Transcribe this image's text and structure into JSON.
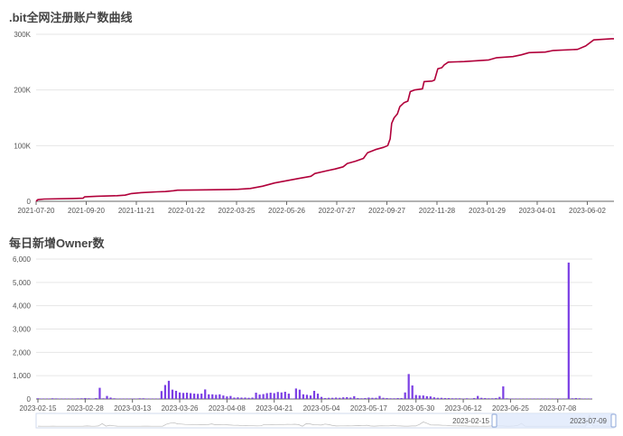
{
  "chart_data": [
    {
      "type": "line",
      "title": ".bit全网注册账户数曲线",
      "color": "#b1003a",
      "ylim": [
        0,
        300000
      ],
      "y_ticks": [
        {
          "value": 0,
          "label": "0"
        },
        {
          "value": 100000,
          "label": "100K"
        },
        {
          "value": 200000,
          "label": "200K"
        },
        {
          "value": 300000,
          "label": "300K"
        }
      ],
      "x_range": [
        0,
        715
      ],
      "x_ticks": [
        {
          "day": 0,
          "label": "2021-07-20"
        },
        {
          "day": 62,
          "label": "2021-09-20"
        },
        {
          "day": 124,
          "label": "2021-11-21"
        },
        {
          "day": 186,
          "label": "2022-01-22"
        },
        {
          "day": 248,
          "label": "2022-03-25"
        },
        {
          "day": 310,
          "label": "2022-05-26"
        },
        {
          "day": 372,
          "label": "2022-07-27"
        },
        {
          "day": 434,
          "label": "2022-09-27"
        },
        {
          "day": 496,
          "label": "2022-11-28"
        },
        {
          "day": 558,
          "label": "2023-01-29"
        },
        {
          "day": 620,
          "label": "2023-04-01"
        },
        {
          "day": 682,
          "label": "2023-06-02"
        }
      ],
      "points": [
        [
          0,
          0
        ],
        [
          2,
          3000
        ],
        [
          10,
          4000
        ],
        [
          45,
          5000
        ],
        [
          58,
          5500
        ],
        [
          60,
          8000
        ],
        [
          75,
          9000
        ],
        [
          100,
          10000
        ],
        [
          110,
          11000
        ],
        [
          118,
          14000
        ],
        [
          130,
          15500
        ],
        [
          150,
          17000
        ],
        [
          160,
          17500
        ],
        [
          170,
          19000
        ],
        [
          175,
          20000
        ],
        [
          200,
          20500
        ],
        [
          230,
          21000
        ],
        [
          250,
          21500
        ],
        [
          265,
          23000
        ],
        [
          280,
          27000
        ],
        [
          295,
          33000
        ],
        [
          310,
          37000
        ],
        [
          325,
          41000
        ],
        [
          340,
          45000
        ],
        [
          345,
          50000
        ],
        [
          360,
          55000
        ],
        [
          370,
          58000
        ],
        [
          380,
          62000
        ],
        [
          385,
          68000
        ],
        [
          395,
          72000
        ],
        [
          405,
          77000
        ],
        [
          410,
          87000
        ],
        [
          420,
          93000
        ],
        [
          430,
          97000
        ],
        [
          435,
          100000
        ],
        [
          438,
          112000
        ],
        [
          440,
          140000
        ],
        [
          443,
          150000
        ],
        [
          447,
          157000
        ],
        [
          450,
          170000
        ],
        [
          455,
          177000
        ],
        [
          460,
          180000
        ],
        [
          463,
          197000
        ],
        [
          468,
          200000
        ],
        [
          478,
          202000
        ],
        [
          480,
          215000
        ],
        [
          490,
          216000
        ],
        [
          493,
          218000
        ],
        [
          497,
          238000
        ],
        [
          502,
          240000
        ],
        [
          505,
          245000
        ],
        [
          510,
          250000
        ],
        [
          530,
          251000
        ],
        [
          560,
          254000
        ],
        [
          570,
          258000
        ],
        [
          590,
          260000
        ],
        [
          600,
          263000
        ],
        [
          610,
          267000
        ],
        [
          630,
          268000
        ],
        [
          640,
          271000
        ],
        [
          670,
          273000
        ],
        [
          680,
          279000
        ],
        [
          690,
          290000
        ],
        [
          712,
          292000
        ],
        [
          715,
          292000
        ]
      ]
    },
    {
      "type": "bar",
      "title": "每日新增Owner数",
      "color": "#7b3fe4",
      "ylim": [
        0,
        6000
      ],
      "y_ticks": [
        {
          "value": 0,
          "label": "0"
        },
        {
          "value": 1000,
          "label": "1,000"
        },
        {
          "value": 2000,
          "label": "2,000"
        },
        {
          "value": 3000,
          "label": "3,000"
        },
        {
          "value": 4000,
          "label": "4,000"
        },
        {
          "value": 5000,
          "label": "5,000"
        },
        {
          "value": 6000,
          "label": "6,000"
        }
      ],
      "start_date": "2023-02-15",
      "x_ticks": [
        {
          "day": 0,
          "label": "2023-02-15"
        },
        {
          "day": 13,
          "label": "2023-02-28"
        },
        {
          "day": 26,
          "label": "2023-03-13"
        },
        {
          "day": 39,
          "label": "2023-03-26"
        },
        {
          "day": 52,
          "label": "2023-04-08"
        },
        {
          "day": 65,
          "label": "2023-04-21"
        },
        {
          "day": 78,
          "label": "2023-05-04"
        },
        {
          "day": 91,
          "label": "2023-05-17"
        },
        {
          "day": 104,
          "label": "2023-05-30"
        },
        {
          "day": 117,
          "label": "2023-06-12"
        },
        {
          "day": 130,
          "label": "2023-06-25"
        },
        {
          "day": 143,
          "label": "2023-07-08"
        }
      ],
      "values": [
        30,
        20,
        20,
        20,
        30,
        25,
        20,
        20,
        20,
        20,
        20,
        25,
        30,
        40,
        30,
        20,
        40,
        480,
        30,
        130,
        60,
        30,
        20,
        20,
        20,
        20,
        20,
        20,
        30,
        30,
        20,
        20,
        20,
        20,
        340,
        600,
        780,
        400,
        350,
        280,
        260,
        270,
        250,
        230,
        220,
        230,
        410,
        200,
        200,
        180,
        200,
        150,
        110,
        130,
        60,
        70,
        60,
        60,
        50,
        60,
        270,
        190,
        210,
        250,
        270,
        250,
        300,
        280,
        310,
        230,
        20,
        450,
        400,
        200,
        180,
        150,
        350,
        230,
        90,
        40,
        50,
        50,
        60,
        50,
        70,
        80,
        60,
        120,
        40,
        30,
        40,
        60,
        50,
        50,
        130,
        50,
        40,
        30,
        30,
        40,
        40,
        280,
        1070,
        580,
        170,
        150,
        150,
        120,
        110,
        70,
        50,
        50,
        40,
        40,
        30,
        30,
        30,
        20,
        30,
        20,
        40,
        130,
        50,
        40,
        30,
        30,
        40,
        90,
        540,
        30,
        20,
        20,
        20,
        20,
        20,
        20,
        20,
        20,
        20,
        20,
        20,
        20,
        20,
        20,
        20,
        20,
        5850,
        30,
        40,
        30,
        20,
        20,
        20
      ],
      "zoom": {
        "start_label": "2023-02-15",
        "end_label": "2023-07-09"
      }
    }
  ]
}
